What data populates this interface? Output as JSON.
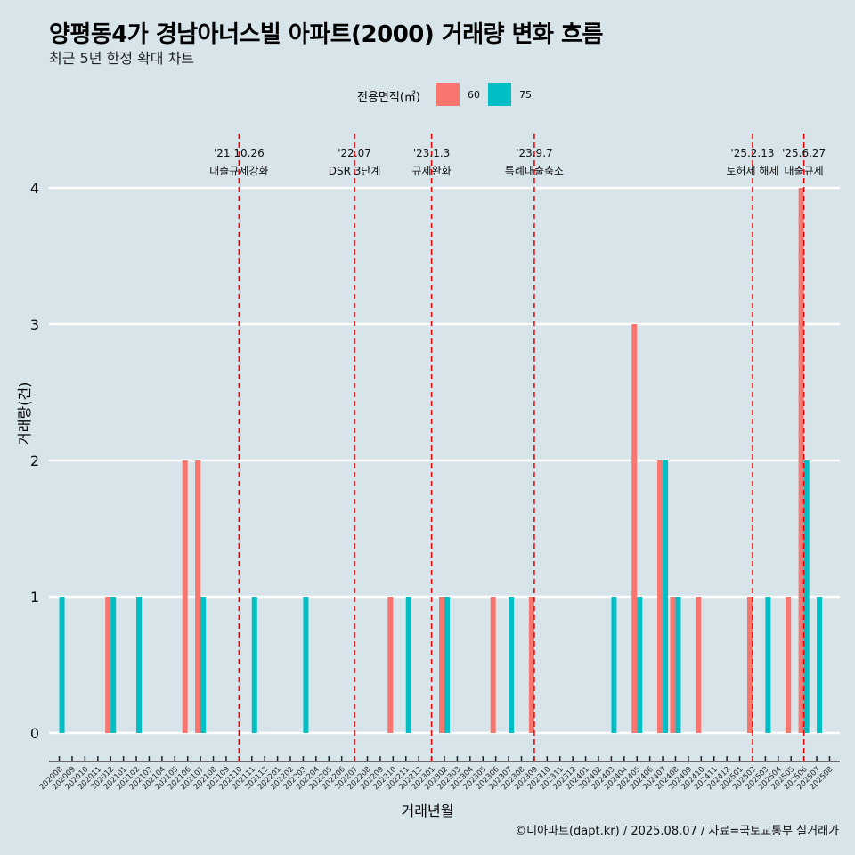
{
  "header": {
    "title": "양평동4가 경남아너스빌 아파트(2000) 거래량 변화 흐름",
    "subtitle": "최근 5년 한정 확대 차트"
  },
  "legend": {
    "title": "전용면적(㎡)",
    "items": [
      {
        "label": "60",
        "color": "#f8766d"
      },
      {
        "label": "75",
        "color": "#00bfc4"
      }
    ]
  },
  "axis": {
    "ylabel": "거래량(건)",
    "xlabel": "거래년월"
  },
  "caption": "©디아파트(dapt.kr) / 2025.08.07 / 자료=국토교통부 실거래가",
  "chart_data": {
    "type": "bar",
    "xlabel": "거래년월",
    "ylabel": "거래량(건)",
    "ylim": [
      0,
      4
    ],
    "yticks": [
      0,
      1,
      2,
      3,
      4
    ],
    "grid": true,
    "legend_position": "top",
    "categories": [
      "202008",
      "202009",
      "202010",
      "202011",
      "202012",
      "202101",
      "202102",
      "202103",
      "202104",
      "202105",
      "202106",
      "202107",
      "202108",
      "202109",
      "202110",
      "202111",
      "202112",
      "202201",
      "202202",
      "202203",
      "202204",
      "202205",
      "202206",
      "202207",
      "202208",
      "202209",
      "202210",
      "202211",
      "202212",
      "202301",
      "202302",
      "202303",
      "202304",
      "202305",
      "202306",
      "202307",
      "202308",
      "202309",
      "202310",
      "202311",
      "202312",
      "202401",
      "202402",
      "202403",
      "202404",
      "202405",
      "202406",
      "202407",
      "202408",
      "202409",
      "202410",
      "202411",
      "202412",
      "202501",
      "202502",
      "202503",
      "202504",
      "202505",
      "202506",
      "202507",
      "202508"
    ],
    "series": [
      {
        "name": "60",
        "color": "#f8766d",
        "values": [
          0,
          0,
          0,
          0,
          1,
          0,
          0,
          0,
          0,
          0,
          2,
          2,
          0,
          0,
          0,
          0,
          0,
          0,
          0,
          0,
          0,
          0,
          0,
          0,
          0,
          0,
          1,
          0,
          0,
          0,
          1,
          0,
          0,
          0,
          1,
          0,
          0,
          1,
          0,
          0,
          0,
          0,
          0,
          0,
          0,
          3,
          0,
          2,
          1,
          0,
          1,
          0,
          0,
          0,
          1,
          0,
          0,
          1,
          4,
          0,
          0
        ]
      },
      {
        "name": "75",
        "color": "#00bfc4",
        "values": [
          1,
          0,
          0,
          0,
          1,
          0,
          1,
          0,
          0,
          0,
          0,
          1,
          0,
          0,
          0,
          1,
          0,
          0,
          0,
          1,
          0,
          0,
          0,
          0,
          0,
          0,
          0,
          1,
          0,
          0,
          1,
          0,
          0,
          0,
          0,
          1,
          0,
          0,
          0,
          0,
          0,
          0,
          0,
          1,
          0,
          1,
          0,
          2,
          1,
          0,
          0,
          0,
          0,
          0,
          0,
          1,
          0,
          0,
          2,
          1,
          0
        ]
      }
    ],
    "annotations": [
      {
        "date": "'21.10.26",
        "label": "대출규제강화",
        "month": "202110"
      },
      {
        "date": "'22.07",
        "label": "DSR 3단계",
        "month": "202207"
      },
      {
        "date": "'23.1.3",
        "label": "규제완화",
        "month": "202301"
      },
      {
        "date": "'23.9.7",
        "label": "특례대출축소",
        "month": "202309"
      },
      {
        "date": "'25.2.13",
        "label": "토허제 해제",
        "month": "202502"
      },
      {
        "date": "'25.6.27",
        "label": "대출규제",
        "month": "202506"
      }
    ]
  }
}
